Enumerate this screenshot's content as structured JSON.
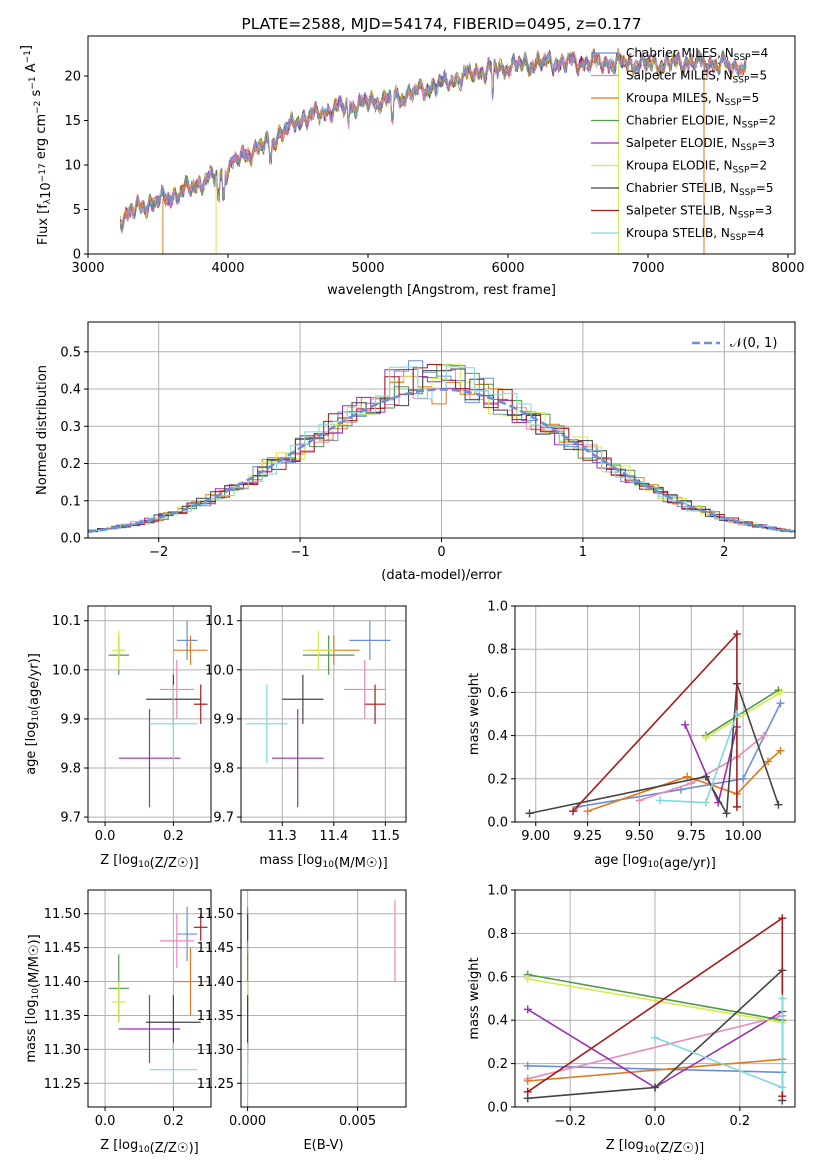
{
  "colors": {
    "chabrier_miles": "#6a8fd8",
    "salpeter_miles": "#e889b8",
    "kroupa_miles": "#e07a1a",
    "chabrier_elodie": "#4f9a4a",
    "salpeter_elodie": "#9b2fb0",
    "kroupa_elodie": "#d8ea4a",
    "chabrier_stelib": "#444444",
    "salpeter_stelib": "#a81a1a",
    "kroupa_stelib": "#7fd8dc",
    "grid": "#b0b0b0",
    "normal_curve": "#6a8fd8"
  },
  "chart_data": [
    {
      "id": "spectrum",
      "type": "line",
      "title": "PLATE=2588, MJD=54174, FIBERID=0495, z=0.177",
      "xlabel": "wavelength [Angstrom, rest frame]",
      "ylabel": "Flux [f_λ 10^-17 erg cm^-2 s^-1 A^-1]",
      "xlim": [
        3000,
        8050
      ],
      "ylim": [
        0,
        24.5
      ],
      "xticks": [
        "3000",
        "4000",
        "5000",
        "6000",
        "7000",
        "8000"
      ],
      "yticks": [
        "0",
        "5",
        "10",
        "15",
        "20"
      ],
      "grid": false,
      "legend_position": "upper-right",
      "legend": [
        {
          "base": "Chabrier MILES, N",
          "sub": "SSP",
          "suffix": "=4",
          "color_key": "chabrier_miles"
        },
        {
          "base": "Salpeter MILES, N",
          "sub": "SSP",
          "suffix": "=5",
          "color_key": "salpeter_miles"
        },
        {
          "base": "Kroupa MILES, N",
          "sub": "SSP",
          "suffix": "=5",
          "color_key": "kroupa_miles"
        },
        {
          "base": "Chabrier ELODIE, N",
          "sub": "SSP",
          "suffix": "=2",
          "color_key": "chabrier_elodie"
        },
        {
          "base": "Salpeter ELODIE, N",
          "sub": "SSP",
          "suffix": "=3",
          "color_key": "salpeter_elodie"
        },
        {
          "base": "Kroupa ELODIE, N",
          "sub": "SSP",
          "suffix": "=2",
          "color_key": "kroupa_elodie"
        },
        {
          "base": "Chabrier STELIB, N",
          "sub": "SSP",
          "suffix": "=5",
          "color_key": "chabrier_stelib"
        },
        {
          "base": "Salpeter STELIB, N",
          "sub": "SSP",
          "suffix": "=3",
          "color_key": "salpeter_stelib"
        },
        {
          "base": "Kroupa STELIB, N",
          "sub": "SSP",
          "suffix": "=4",
          "color_key": "kroupa_stelib"
        }
      ],
      "continuum": [
        [
          3230,
          4.0
        ],
        [
          3400,
          5.5
        ],
        [
          3600,
          6.5
        ],
        [
          3800,
          8.0
        ],
        [
          3950,
          9.0
        ],
        [
          4100,
          11.0
        ],
        [
          4300,
          12.5
        ],
        [
          4500,
          15.0
        ],
        [
          4800,
          16.5
        ],
        [
          5000,
          17.0
        ],
        [
          5200,
          17.5
        ],
        [
          5400,
          18.5
        ],
        [
          5600,
          19.5
        ],
        [
          5800,
          20.5
        ],
        [
          6000,
          21.0
        ],
        [
          6200,
          21.5
        ],
        [
          6500,
          21.5
        ],
        [
          6800,
          21.5
        ],
        [
          7000,
          21.3
        ],
        [
          7200,
          21.5
        ],
        [
          7400,
          21.5
        ],
        [
          7700,
          21.0
        ]
      ],
      "dips": [
        {
          "x": 3535,
          "color_key": "kroupa_miles",
          "to": 0
        },
        {
          "x": 3915,
          "color_key": "kroupa_elodie",
          "to": 0
        },
        {
          "x": 6790,
          "color_key": "kroupa_elodie",
          "to": 0
        },
        {
          "x": 7400,
          "color_key": "kroupa_miles",
          "to": 0
        }
      ]
    },
    {
      "id": "residual_hist",
      "type": "bar",
      "xlabel": "(data-model)/error",
      "ylabel": "Normed distribution",
      "xlim": [
        -2.5,
        2.5
      ],
      "ylim": [
        0,
        0.58
      ],
      "xticks": [
        "−2",
        "−1",
        "0",
        "1",
        "2"
      ],
      "yticks": [
        "0.0",
        "0.1",
        "0.2",
        "0.3",
        "0.4",
        "0.5"
      ],
      "grid": true,
      "legend_position": "upper-right",
      "curve_label": "𝒩(0, 1)",
      "bin_width": 0.1
    },
    {
      "id": "age_vs_Z",
      "type": "scatter",
      "xlabel": "Z [log10(Z/Z☉)]",
      "ylabel": "age [log10(age/yr)]",
      "xlim": [
        -0.05,
        0.31
      ],
      "ylim": [
        9.69,
        10.13
      ],
      "xticks": [
        "0.0",
        "0.2"
      ],
      "yticks": [
        "9.7",
        "9.8",
        "9.9",
        "10.0",
        "10.1"
      ],
      "grid": true,
      "points": [
        {
          "color_key": "chabrier_miles",
          "x": 0.24,
          "y": 10.06,
          "xerr": 0.03,
          "yerr": 0.04
        },
        {
          "color_key": "salpeter_miles",
          "x": 0.21,
          "y": 9.96,
          "xerr": 0.05,
          "yerr": 0.06
        },
        {
          "color_key": "kroupa_miles",
          "x": 0.25,
          "y": 10.04,
          "xerr": 0.05,
          "yerr": 0.03
        },
        {
          "color_key": "chabrier_elodie",
          "x": 0.04,
          "y": 10.03,
          "xerr": 0.03,
          "yerr": 0.04
        },
        {
          "color_key": "salpeter_elodie",
          "x": 0.13,
          "y": 9.82,
          "xerr": 0.09,
          "yerr": 0.1
        },
        {
          "color_key": "kroupa_elodie",
          "x": 0.04,
          "y": 10.04,
          "xerr": 0.02,
          "yerr": 0.04
        },
        {
          "color_key": "chabrier_stelib",
          "x": 0.2,
          "y": 9.94,
          "xerr": 0.08,
          "yerr": 0.05
        },
        {
          "color_key": "salpeter_stelib",
          "x": 0.28,
          "y": 9.93,
          "xerr": 0.02,
          "yerr": 0.04
        },
        {
          "color_key": "kroupa_stelib",
          "x": 0.2,
          "y": 9.89,
          "xerr": 0.07,
          "yerr": 0.08
        }
      ]
    },
    {
      "id": "age_vs_mass",
      "type": "scatter",
      "xlabel": "mass [log10(M/M☉)]",
      "ylabel": "",
      "xlim": [
        11.22,
        11.54
      ],
      "ylim": [
        9.69,
        10.13
      ],
      "xticks": [
        "11.3",
        "11.4",
        "11.5"
      ],
      "yticks": [
        "9.7",
        "9.8",
        "9.9",
        "10.0",
        "10.1"
      ],
      "grid": true,
      "points": [
        {
          "color_key": "chabrier_miles",
          "x": 11.47,
          "y": 10.06,
          "xerr": 0.04,
          "yerr": 0.04
        },
        {
          "color_key": "salpeter_miles",
          "x": 11.46,
          "y": 9.96,
          "xerr": 0.04,
          "yerr": 0.06
        },
        {
          "color_key": "kroupa_miles",
          "x": 11.4,
          "y": 10.04,
          "xerr": 0.05,
          "yerr": 0.03
        },
        {
          "color_key": "chabrier_elodie",
          "x": 11.39,
          "y": 10.03,
          "xerr": 0.05,
          "yerr": 0.04
        },
        {
          "color_key": "salpeter_elodie",
          "x": 11.33,
          "y": 9.82,
          "xerr": 0.05,
          "yerr": 0.1
        },
        {
          "color_key": "kroupa_elodie",
          "x": 11.37,
          "y": 10.04,
          "xerr": 0.03,
          "yerr": 0.04
        },
        {
          "color_key": "chabrier_stelib",
          "x": 11.34,
          "y": 9.94,
          "xerr": 0.04,
          "yerr": 0.05
        },
        {
          "color_key": "salpeter_stelib",
          "x": 11.48,
          "y": 9.93,
          "xerr": 0.02,
          "yerr": 0.04
        },
        {
          "color_key": "kroupa_stelib",
          "x": 11.27,
          "y": 9.89,
          "xerr": 0.04,
          "yerr": 0.08
        }
      ]
    },
    {
      "id": "mass_weight_vs_age",
      "type": "line",
      "xlabel": "age [log10(age/yr)]",
      "ylabel": "mass weight",
      "xlim": [
        8.9,
        10.25
      ],
      "ylim": [
        0.0,
        1.0
      ],
      "xticks": [
        "9.00",
        "9.25",
        "9.50",
        "9.75",
        "10.00"
      ],
      "yticks": [
        "0.0",
        "0.2",
        "0.4",
        "0.6",
        "0.8",
        "1.0"
      ],
      "grid": true,
      "series": [
        {
          "color_key": "chabrier_miles",
          "x": [
            9.2,
            9.7,
            10.0,
            10.18
          ],
          "y": [
            0.07,
            0.15,
            0.2,
            0.55
          ]
        },
        {
          "color_key": "salpeter_miles",
          "x": [
            9.5,
            9.75,
            9.97,
            10.1
          ],
          "y": [
            0.1,
            0.18,
            0.3,
            0.4
          ]
        },
        {
          "color_key": "kroupa_miles",
          "x": [
            9.25,
            9.73,
            9.97,
            10.12,
            10.18
          ],
          "y": [
            0.05,
            0.21,
            0.13,
            0.28,
            0.33
          ]
        },
        {
          "color_key": "chabrier_elodie",
          "x": [
            9.82,
            10.17
          ],
          "y": [
            0.4,
            0.61
          ]
        },
        {
          "color_key": "salpeter_elodie",
          "x": [
            9.72,
            9.88,
            9.97
          ],
          "y": [
            0.45,
            0.09,
            0.44
          ]
        },
        {
          "color_key": "kroupa_elodie",
          "x": [
            9.82,
            10.18
          ],
          "y": [
            0.39,
            0.6
          ]
        },
        {
          "color_key": "chabrier_stelib",
          "x": [
            8.97,
            9.82,
            9.92,
            9.97,
            10.17
          ],
          "y": [
            0.04,
            0.21,
            0.04,
            0.64,
            0.08
          ]
        },
        {
          "color_key": "salpeter_stelib",
          "x": [
            9.18,
            9.97,
            9.97
          ],
          "y": [
            0.05,
            0.87,
            0.07
          ]
        },
        {
          "color_key": "kroupa_stelib",
          "x": [
            9.6,
            9.82,
            9.97
          ],
          "y": [
            0.1,
            0.09,
            0.5
          ]
        }
      ]
    },
    {
      "id": "mass_vs_Z",
      "type": "scatter",
      "xlabel": "Z [log10(Z/Z☉)]",
      "ylabel": "mass [log10(M/M☉)]",
      "xlim": [
        -0.05,
        0.31
      ],
      "ylim": [
        11.215,
        11.535
      ],
      "xticks": [
        "0.0",
        "0.2"
      ],
      "yticks": [
        "11.25",
        "11.30",
        "11.35",
        "11.40",
        "11.45",
        "11.50"
      ],
      "grid": true,
      "points": [
        {
          "color_key": "chabrier_miles",
          "x": 0.24,
          "y": 11.47,
          "xerr": 0.03,
          "yerr": 0.04
        },
        {
          "color_key": "salpeter_miles",
          "x": 0.21,
          "y": 11.46,
          "xerr": 0.05,
          "yerr": 0.04
        },
        {
          "color_key": "kroupa_miles",
          "x": 0.25,
          "y": 11.4,
          "xerr": 0.05,
          "yerr": 0.05
        },
        {
          "color_key": "chabrier_elodie",
          "x": 0.04,
          "y": 11.39,
          "xerr": 0.03,
          "yerr": 0.05
        },
        {
          "color_key": "salpeter_elodie",
          "x": 0.13,
          "y": 11.33,
          "xerr": 0.09,
          "yerr": 0.05
        },
        {
          "color_key": "kroupa_elodie",
          "x": 0.04,
          "y": 11.37,
          "xerr": 0.02,
          "yerr": 0.03
        },
        {
          "color_key": "chabrier_stelib",
          "x": 0.2,
          "y": 11.34,
          "xerr": 0.08,
          "yerr": 0.04
        },
        {
          "color_key": "salpeter_stelib",
          "x": 0.28,
          "y": 11.48,
          "xerr": 0.02,
          "yerr": 0.02
        },
        {
          "color_key": "kroupa_stelib",
          "x": 0.2,
          "y": 11.27,
          "xerr": 0.07,
          "yerr": 0.04
        }
      ]
    },
    {
      "id": "mass_vs_ebv",
      "type": "scatter",
      "xlabel": "E(B-V)",
      "ylabel": "",
      "xlim": [
        -0.0003,
        0.0072
      ],
      "ylim": [
        11.215,
        11.535
      ],
      "xticks": [
        "0.000",
        "0.005"
      ],
      "yticks": [
        "11.25",
        "11.30",
        "11.35",
        "11.40",
        "11.45",
        "11.50"
      ],
      "grid": true,
      "points": [
        {
          "color_key": "chabrier_miles",
          "x": 0.0,
          "y": 11.47,
          "xerr": 0,
          "yerr": 0.04
        },
        {
          "color_key": "salpeter_miles",
          "x": 0.0067,
          "y": 11.46,
          "xerr": 0,
          "yerr": 0.06
        },
        {
          "color_key": "kroupa_miles",
          "x": 0.0,
          "y": 11.4,
          "xerr": 0,
          "yerr": 0.05
        },
        {
          "color_key": "chabrier_elodie",
          "x": 0.0,
          "y": 11.39,
          "xerr": 0,
          "yerr": 0.05
        },
        {
          "color_key": "salpeter_elodie",
          "x": 0.0,
          "y": 11.33,
          "xerr": 0,
          "yerr": 0.05
        },
        {
          "color_key": "kroupa_elodie",
          "x": 0.0,
          "y": 11.37,
          "xerr": 0,
          "yerr": 0.03
        },
        {
          "color_key": "chabrier_stelib",
          "x": 0.0,
          "y": 11.34,
          "xerr": 0,
          "yerr": 0.04
        },
        {
          "color_key": "salpeter_stelib",
          "x": 0.0,
          "y": 11.48,
          "xerr": 0,
          "yerr": 0.02
        },
        {
          "color_key": "kroupa_stelib",
          "x": 0.0,
          "y": 11.27,
          "xerr": 0,
          "yerr": 0.04
        }
      ]
    },
    {
      "id": "mass_weight_vs_Z",
      "type": "line",
      "xlabel": "Z [log10(Z/Z☉)]",
      "ylabel": "mass weight",
      "xlim": [
        -0.33,
        0.33
      ],
      "ylim": [
        0.0,
        1.0
      ],
      "xticks": [
        "−0.2",
        "0.0",
        "0.2"
      ],
      "yticks": [
        "0.0",
        "0.2",
        "0.4",
        "0.6",
        "0.8",
        "1.0"
      ],
      "grid": true,
      "series": [
        {
          "color_key": "chabrier_miles",
          "x": [
            -0.3,
            0.3
          ],
          "y": [
            0.19,
            0.16
          ]
        },
        {
          "color_key": "salpeter_miles",
          "x": [
            -0.3,
            0.3
          ],
          "y": [
            0.13,
            0.42
          ]
        },
        {
          "color_key": "kroupa_miles",
          "x": [
            -0.3,
            0.3
          ],
          "y": [
            0.12,
            0.22
          ]
        },
        {
          "color_key": "chabrier_elodie",
          "x": [
            -0.3,
            0.3
          ],
          "y": [
            0.61,
            0.4
          ]
        },
        {
          "color_key": "salpeter_elodie",
          "x": [
            -0.3,
            0.0,
            0.3
          ],
          "y": [
            0.45,
            0.09,
            0.44
          ]
        },
        {
          "color_key": "kroupa_elodie",
          "x": [
            -0.3,
            0.3
          ],
          "y": [
            0.59,
            0.39
          ]
        },
        {
          "color_key": "chabrier_stelib",
          "x": [
            -0.3,
            0.0,
            0.3,
            0.3
          ],
          "y": [
            0.04,
            0.09,
            0.63,
            0.03
          ]
        },
        {
          "color_key": "salpeter_stelib",
          "x": [
            -0.3,
            0.3,
            0.3
          ],
          "y": [
            0.07,
            0.87,
            0.05
          ]
        },
        {
          "color_key": "kroupa_stelib",
          "x": [
            0.0,
            0.3,
            0.3
          ],
          "y": [
            0.32,
            0.09,
            0.5
          ]
        }
      ]
    }
  ]
}
